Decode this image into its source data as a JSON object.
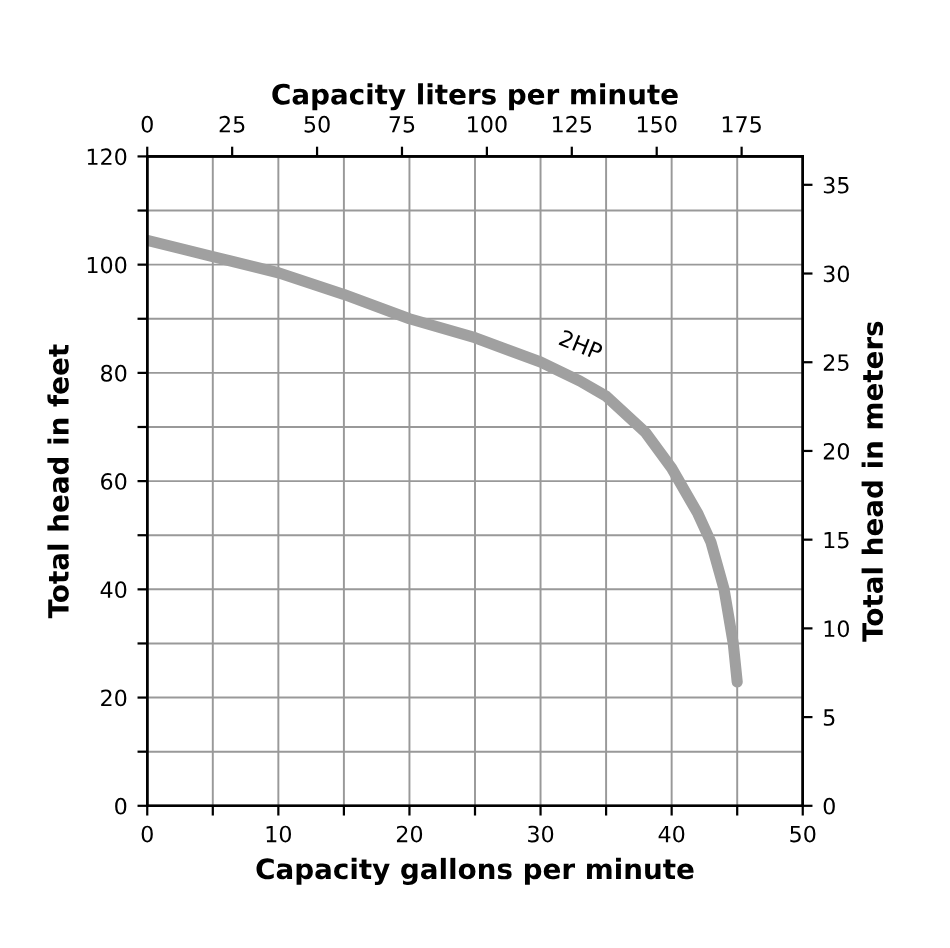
{
  "chart_data": {
    "type": "line",
    "xlabel": "Capacity gallons per minute",
    "ylabel": "Total head in feet",
    "y2label": "Total head in meters",
    "x2label": "Capacity liters per minute",
    "xlim": [
      0,
      50
    ],
    "xticks": [
      0,
      {
        "value": 5,
        "label": null
      },
      10,
      {
        "value": 15,
        "label": null
      },
      20,
      {
        "value": 25,
        "label": null
      },
      30,
      {
        "value": 35,
        "label": null
      },
      40,
      {
        "value": 45,
        "label": null
      },
      50
    ],
    "ylim": [
      0,
      120
    ],
    "yticks": [
      0,
      {
        "value": 10,
        "label": null
      },
      20,
      {
        "value": 30,
        "label": null
      },
      40,
      {
        "value": 50,
        "label": null
      },
      60,
      {
        "value": 70,
        "label": null
      },
      80,
      {
        "value": 90,
        "label": null
      },
      100,
      {
        "value": 110,
        "label": null
      },
      120
    ],
    "x2lim": [
      0,
      193
    ],
    "x2ticks": [
      0,
      25,
      50,
      75,
      100,
      125,
      150,
      175
    ],
    "y2lim": [
      0,
      36.6
    ],
    "y2ticks": [
      0,
      5,
      10,
      15,
      20,
      25,
      30,
      35
    ],
    "grid": true,
    "legend": false,
    "marker": "none",
    "line_style": "solid",
    "series": [
      {
        "name": "2HP",
        "color": "#a0a0a0",
        "x": [
          0,
          5,
          10,
          15,
          20,
          25,
          30,
          33,
          35,
          38,
          40,
          42,
          43,
          44,
          44.7,
          45
        ],
        "values": [
          104.5,
          101.5,
          98.5,
          94.5,
          90,
          86.5,
          82,
          78.5,
          75.7,
          69,
          62.4,
          54,
          48.7,
          40,
          30,
          22.9
        ]
      }
    ]
  }
}
